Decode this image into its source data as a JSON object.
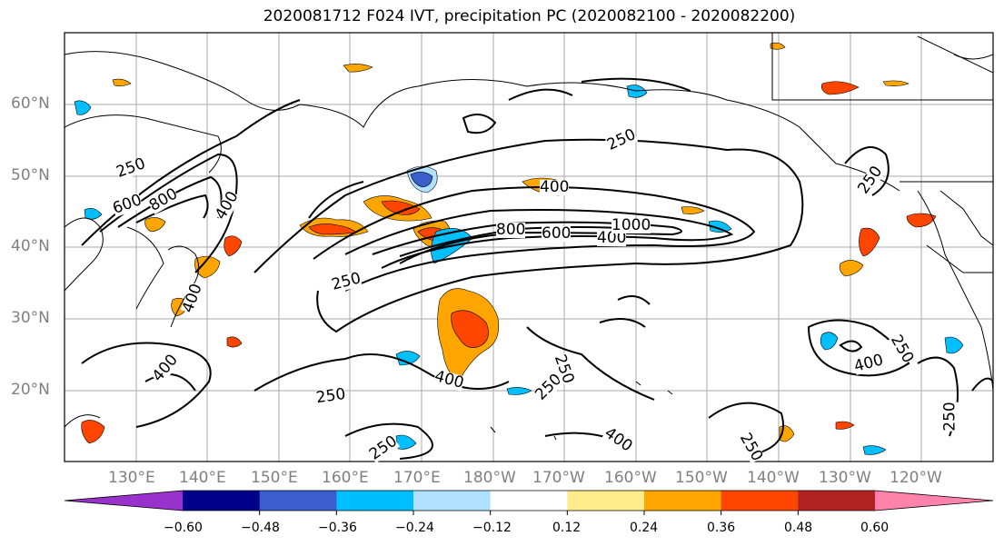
{
  "title": "2020081712 F024 IVT, precipitation PC (2020082100 - 2020082200)",
  "map": {
    "lat_labels": [
      "60°N",
      "50°N",
      "40°N",
      "30°N",
      "20°N"
    ],
    "lon_labels": [
      "130°E",
      "140°E",
      "150°E",
      "160°E",
      "170°E",
      "180°W",
      "170°W",
      "160°W",
      "150°W",
      "140°W",
      "130°W",
      "120°W"
    ]
  },
  "contour_labels": [
    "250",
    "600",
    "800",
    "400",
    "250",
    "400",
    "800",
    "600",
    "400",
    "1000",
    "250",
    "250",
    "400",
    "400",
    "250",
    "400",
    "250",
    "250",
    "400",
    "250",
    "250",
    "250",
    "400",
    "250"
  ],
  "colorbar": {
    "ticks": [
      "−0.60",
      "−0.48",
      "−0.36",
      "−0.24",
      "−0.12",
      "0.12",
      "0.24",
      "0.36",
      "0.48",
      "0.60"
    ],
    "colors": [
      "#9932cc",
      "#00008b",
      "#3a5fcd",
      "#00bfff",
      "#b0e2ff",
      "#ffffff",
      "#ffec8b",
      "#ffa500",
      "#ff4500",
      "#b22222",
      "#ff82ab"
    ]
  }
}
